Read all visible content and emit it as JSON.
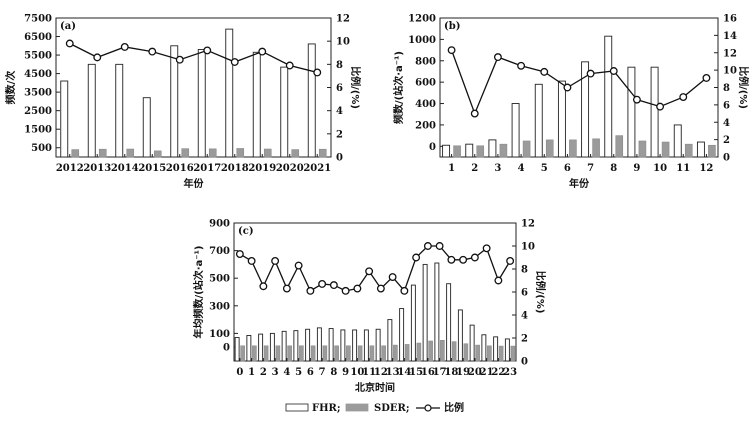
{
  "chart_data": [
    {
      "type": "bar",
      "panel_label": "(a)",
      "xlabel": "年份",
      "ylabel": "频数/次",
      "y2label": "比例/(%)",
      "categories": [
        "2012",
        "2013",
        "2014",
        "2015",
        "2016",
        "2017",
        "2018",
        "2019",
        "2020",
        "2021"
      ],
      "ylim": [
        0,
        7500
      ],
      "yticks": [
        500,
        1500,
        2500,
        3500,
        4500,
        5500,
        6500,
        7500
      ],
      "y2lim": [
        0,
        12
      ],
      "y2ticks": [
        0,
        2,
        4,
        6,
        8,
        10,
        12
      ],
      "series": [
        {
          "name": "FHR",
          "axis": "left",
          "kind": "bar",
          "values": [
            4100,
            5000,
            5000,
            3200,
            6000,
            5800,
            6900,
            5650,
            4850,
            6100
          ]
        },
        {
          "name": "SDER",
          "axis": "left",
          "kind": "bar",
          "values": [
            400,
            420,
            430,
            330,
            450,
            440,
            460,
            430,
            400,
            420
          ]
        },
        {
          "name": "比例",
          "axis": "right",
          "kind": "line",
          "values": [
            9.8,
            8.6,
            9.5,
            9.1,
            8.4,
            9.2,
            8.2,
            9.1,
            7.9,
            7.3
          ]
        }
      ]
    },
    {
      "type": "bar",
      "panel_label": "(b)",
      "xlabel": "年份",
      "ylabel": "频数/(站次·a⁻¹)",
      "y2label": "比例/(%)",
      "categories": [
        "1",
        "2",
        "3",
        "4",
        "5",
        "6",
        "7",
        "8",
        "9",
        "10",
        "11",
        "12"
      ],
      "ylim": [
        -100,
        1200
      ],
      "yticks": [
        0,
        200,
        400,
        600,
        800,
        1000,
        1200
      ],
      "y2lim": [
        0,
        16
      ],
      "y2ticks": [
        0,
        2,
        4,
        6,
        8,
        10,
        12,
        14,
        16
      ],
      "series": [
        {
          "name": "FHR",
          "axis": "left",
          "kind": "bar",
          "values": [
            10,
            20,
            60,
            400,
            580,
            610,
            790,
            1030,
            740,
            740,
            200,
            40
          ]
        },
        {
          "name": "SDER",
          "axis": "left",
          "kind": "bar",
          "values": [
            5,
            5,
            20,
            50,
            60,
            60,
            70,
            100,
            50,
            40,
            20,
            10
          ]
        },
        {
          "name": "比例",
          "axis": "right",
          "kind": "line",
          "values": [
            12.3,
            5.0,
            11.5,
            10.5,
            9.8,
            8.0,
            9.6,
            9.9,
            6.6,
            5.8,
            6.9,
            9.1
          ]
        }
      ]
    },
    {
      "type": "bar",
      "panel_label": "(c)",
      "xlabel": "北京时间",
      "ylabel": "年均频数/(站次·a⁻¹)",
      "y2label": "比例/(%)",
      "categories": [
        "0",
        "1",
        "2",
        "3",
        "4",
        "5",
        "6",
        "7",
        "8",
        "9",
        "10",
        "11",
        "12",
        "13",
        "14",
        "15",
        "16",
        "17",
        "18",
        "19",
        "20",
        "21",
        "22",
        "23"
      ],
      "ylim": [
        -100,
        900
      ],
      "yticks": [
        0,
        100,
        300,
        500,
        700,
        900
      ],
      "y2lim": [
        0,
        12
      ],
      "y2ticks": [
        0,
        2,
        4,
        6,
        8,
        10,
        12
      ],
      "series": [
        {
          "name": "FHR",
          "axis": "left",
          "kind": "bar",
          "values": [
            70,
            85,
            95,
            100,
            115,
            120,
            130,
            140,
            135,
            125,
            125,
            125,
            130,
            200,
            280,
            450,
            600,
            610,
            460,
            270,
            160,
            90,
            75,
            60
          ]
        },
        {
          "name": "SDER",
          "axis": "left",
          "kind": "bar",
          "values": [
            10,
            10,
            10,
            10,
            10,
            10,
            10,
            10,
            10,
            10,
            10,
            10,
            10,
            15,
            20,
            30,
            45,
            50,
            40,
            25,
            15,
            10,
            8,
            8
          ]
        },
        {
          "name": "比例",
          "axis": "right",
          "kind": "line",
          "values": [
            9.3,
            8.7,
            6.5,
            8.7,
            6.3,
            8.3,
            6.1,
            6.7,
            6.6,
            6.1,
            6.3,
            7.8,
            6.3,
            7.3,
            6.1,
            9.0,
            10.0,
            10.0,
            8.8,
            8.8,
            9.0,
            9.8,
            7.0,
            8.7
          ]
        }
      ]
    }
  ],
  "legend": {
    "fhr": "FHR;",
    "sder": "SDER;",
    "ratio": "比例"
  }
}
